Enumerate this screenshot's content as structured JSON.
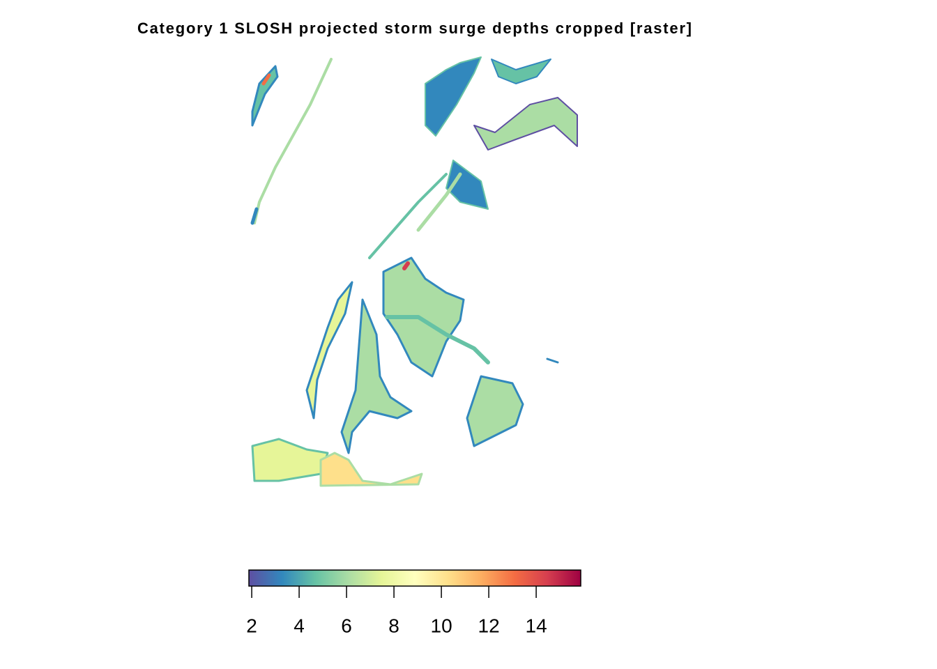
{
  "title": "Category 1 SLOSH projected storm surge depths cropped [raster]",
  "colorbar": {
    "lim": [
      1.88,
      15.88
    ],
    "ticks": [
      2,
      4,
      6,
      8,
      10,
      12,
      14
    ],
    "colors": [
      "#5e4fa2",
      "#3288bd",
      "#66c2a5",
      "#abdda4",
      "#e6f598",
      "#ffffbf",
      "#fee08b",
      "#fdae61",
      "#f46d43",
      "#d53e4f",
      "#9e0142"
    ]
  }
}
